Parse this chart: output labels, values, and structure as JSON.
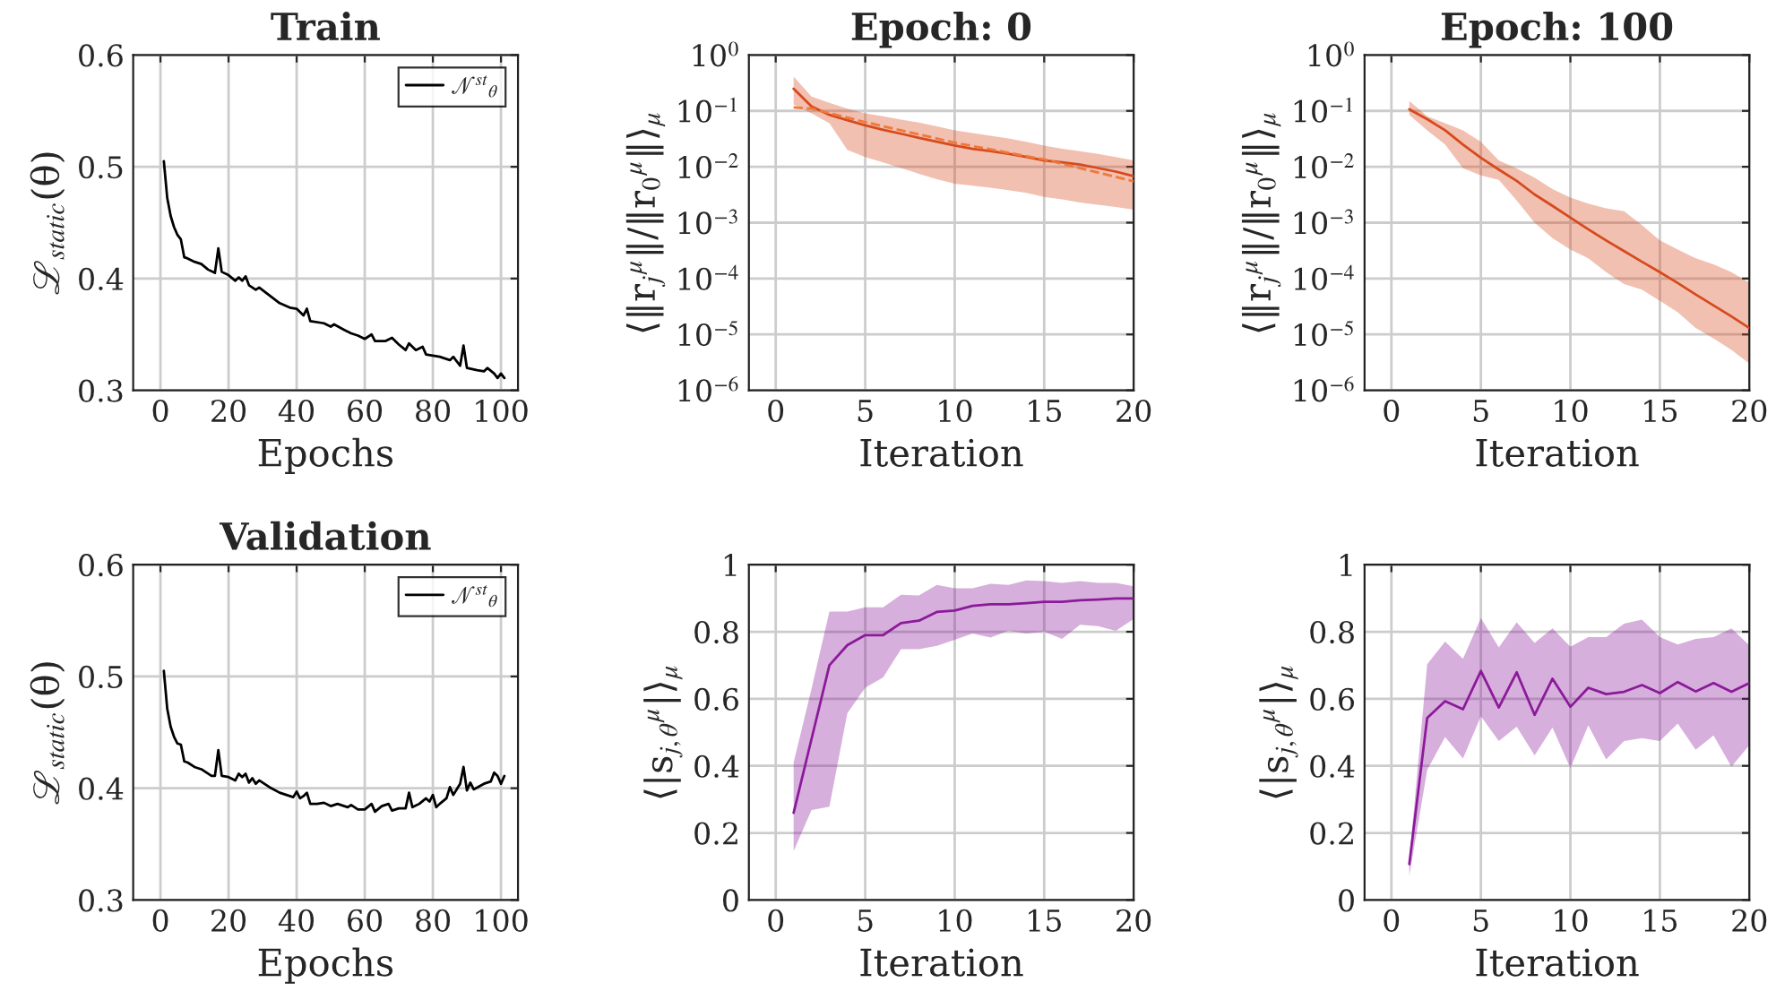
{
  "chart_data": [
    {
      "type": "line",
      "title": "Train",
      "xlabel": "Epochs",
      "ylabel": "ℒ$_{static}$(θ)",
      "xlim": [
        -8,
        105
      ],
      "xticks": [
        0,
        20,
        40,
        60,
        80,
        100
      ],
      "ylim": [
        0.3,
        0.6
      ],
      "yticks": [
        0.3,
        0.4,
        0.5,
        0.6
      ],
      "grid": true,
      "legend": "top right",
      "series": [
        {
          "name": "𝒩$^{st}$$_{θ}$",
          "color": "#000000",
          "x": [
            1,
            2,
            3,
            4,
            5,
            6,
            7,
            8,
            10,
            12,
            14,
            16,
            17,
            18,
            20,
            22,
            23,
            24,
            25,
            26,
            28,
            29,
            32,
            35,
            38,
            40,
            41,
            42,
            43,
            44,
            48,
            50,
            51,
            54,
            56,
            58,
            60,
            62,
            63,
            66,
            68,
            70,
            72,
            73,
            75,
            77,
            78,
            80,
            82,
            84,
            85,
            86,
            88,
            89,
            90,
            93,
            95,
            96,
            98,
            99,
            100,
            101
          ],
          "values": [
            0.505,
            0.472,
            0.456,
            0.446,
            0.439,
            0.435,
            0.419,
            0.418,
            0.415,
            0.413,
            0.408,
            0.405,
            0.427,
            0.406,
            0.403,
            0.398,
            0.401,
            0.398,
            0.402,
            0.394,
            0.39,
            0.392,
            0.385,
            0.378,
            0.374,
            0.373,
            0.37,
            0.367,
            0.373,
            0.362,
            0.36,
            0.357,
            0.359,
            0.354,
            0.351,
            0.349,
            0.346,
            0.35,
            0.344,
            0.344,
            0.347,
            0.341,
            0.336,
            0.342,
            0.336,
            0.339,
            0.332,
            0.331,
            0.33,
            0.328,
            0.327,
            0.33,
            0.322,
            0.34,
            0.32,
            0.318,
            0.317,
            0.32,
            0.315,
            0.311,
            0.315,
            0.311
          ]
        }
      ]
    },
    {
      "type": "line",
      "title": "Epoch: 0",
      "xlabel": "Iteration",
      "ylabel": "⟨‖r$_{j}$$^{μ}$‖/‖r$_{0}$$^{μ}$‖⟩$_{μ}$",
      "log": "y",
      "xlim": [
        -1.5,
        20
      ],
      "xticks": [
        0,
        5,
        10,
        15,
        20
      ],
      "ylim": [
        1e-06,
        1
      ],
      "yticks": [
        {
          "value": 1e-06,
          "label": "10$^{−6}$"
        },
        {
          "value": 1e-05,
          "label": "10$^{−5}$"
        },
        {
          "value": 0.0001,
          "label": "10$^{−4}$"
        },
        {
          "value": 0.001,
          "label": "10$^{−3}$"
        },
        {
          "value": 0.01,
          "label": "10$^{−2}$"
        },
        {
          "value": 0.1,
          "label": "10$^{−1}$"
        },
        {
          "value": 1,
          "label": "10$^{0}$"
        }
      ],
      "grid": true,
      "x": [
        1,
        2,
        3,
        4,
        5,
        6,
        7,
        8,
        9,
        10,
        11,
        12,
        13,
        14,
        15,
        16,
        17,
        18,
        19,
        20
      ],
      "series": [
        {
          "color": "#d64a1e",
          "values": [
            0.25,
            0.12,
            0.085,
            0.068,
            0.055,
            0.046,
            0.039,
            0.033,
            0.028,
            0.024,
            0.021,
            0.019,
            0.017,
            0.015,
            0.013,
            0.012,
            0.011,
            0.0095,
            0.0082,
            0.0068
          ],
          "lower": [
            0.13,
            0.09,
            0.06,
            0.02,
            0.015,
            0.012,
            0.0095,
            0.0075,
            0.006,
            0.005,
            0.0046,
            0.0042,
            0.0038,
            0.0034,
            0.0029,
            0.0026,
            0.0023,
            0.0021,
            0.0019,
            0.0017
          ],
          "upper": [
            0.41,
            0.18,
            0.14,
            0.11,
            0.09,
            0.08,
            0.07,
            0.062,
            0.053,
            0.045,
            0.04,
            0.036,
            0.032,
            0.028,
            0.024,
            0.021,
            0.019,
            0.017,
            0.015,
            0.013
          ]
        },
        {
          "color": "#f07838",
          "line_style": "dashed",
          "x": [
            1,
            2,
            5,
            10,
            15,
            20
          ],
          "values": [
            0.115,
            0.11,
            0.063,
            0.027,
            0.0135,
            0.0055
          ]
        }
      ]
    },
    {
      "type": "line",
      "title": "Epoch: 100",
      "xlabel": "Iteration",
      "ylabel": "⟨‖r$_{j}$$^{μ}$‖/‖r$_{0}$$^{μ}$‖⟩$_{μ}$",
      "log": "y",
      "xlim": [
        -1.5,
        20
      ],
      "xticks": [
        0,
        5,
        10,
        15,
        20
      ],
      "ylim": [
        1e-06,
        1
      ],
      "yticks": [
        {
          "value": 1e-06,
          "label": "10$^{−6}$"
        },
        {
          "value": 1e-05,
          "label": "10$^{−5}$"
        },
        {
          "value": 0.0001,
          "label": "10$^{−4}$"
        },
        {
          "value": 0.001,
          "label": "10$^{−3}$"
        },
        {
          "value": 0.01,
          "label": "10$^{−2}$"
        },
        {
          "value": 0.1,
          "label": "10$^{−1}$"
        },
        {
          "value": 1,
          "label": "10$^{0}$"
        }
      ],
      "grid": true,
      "x": [
        1,
        2,
        3,
        4,
        5,
        6,
        7,
        8,
        9,
        10,
        11,
        12,
        13,
        14,
        15,
        16,
        17,
        18,
        19,
        20
      ],
      "series": [
        {
          "color": "#d64a1e",
          "values": [
            0.107,
            0.071,
            0.045,
            0.025,
            0.0145,
            0.0089,
            0.0056,
            0.0032,
            0.002,
            0.00123,
            0.00076,
            0.00048,
            0.00031,
            0.0002,
            0.00013,
            8.3e-05,
            5.2e-05,
            3.3e-05,
            2.1e-05,
            1.3e-05
          ],
          "lower": [
            0.085,
            0.045,
            0.025,
            0.0094,
            0.007,
            0.0058,
            0.0025,
            0.001,
            0.00053,
            0.00033,
            0.00023,
            0.00013,
            8e-05,
            6.3e-05,
            4e-05,
            2.5e-05,
            1.3e-05,
            8.5e-06,
            5.3e-06,
            3e-06
          ],
          "upper": [
            0.15,
            0.08,
            0.06,
            0.045,
            0.028,
            0.013,
            0.0093,
            0.0064,
            0.004,
            0.0028,
            0.0022,
            0.0018,
            0.0016,
            0.0009,
            0.00048,
            0.00033,
            0.00023,
            0.00018,
            0.00013,
            8.4e-05
          ]
        }
      ]
    },
    {
      "type": "line",
      "title": "Validation",
      "xlabel": "Epochs",
      "ylabel": "ℒ$_{static}$(θ)",
      "xlim": [
        -8,
        105
      ],
      "xticks": [
        0,
        20,
        40,
        60,
        80,
        100
      ],
      "ylim": [
        0.3,
        0.6
      ],
      "yticks": [
        0.3,
        0.4,
        0.5,
        0.6
      ],
      "grid": true,
      "legend": "top right",
      "series": [
        {
          "name": "𝒩$^{st}$$_{θ}$",
          "color": "#000000",
          "x": [
            1,
            2,
            3,
            4,
            5,
            6,
            7,
            8,
            10,
            12,
            15,
            16,
            17,
            18,
            20,
            22,
            23,
            24,
            25,
            26,
            27,
            28,
            29,
            32,
            35,
            38,
            39,
            40,
            41,
            42,
            43,
            44,
            46,
            48,
            50,
            52,
            55,
            56,
            58,
            60,
            62,
            63,
            65,
            67,
            68,
            70,
            72,
            73,
            74,
            76,
            78,
            79,
            80,
            81,
            82,
            84,
            85,
            86,
            88,
            89,
            90,
            91,
            92,
            95,
            97,
            98,
            99,
            100,
            101
          ],
          "values": [
            0.505,
            0.471,
            0.455,
            0.446,
            0.44,
            0.439,
            0.424,
            0.423,
            0.419,
            0.417,
            0.411,
            0.411,
            0.434,
            0.411,
            0.41,
            0.407,
            0.413,
            0.41,
            0.413,
            0.405,
            0.409,
            0.404,
            0.407,
            0.401,
            0.396,
            0.393,
            0.392,
            0.397,
            0.391,
            0.393,
            0.396,
            0.386,
            0.386,
            0.387,
            0.384,
            0.386,
            0.383,
            0.385,
            0.381,
            0.381,
            0.386,
            0.379,
            0.384,
            0.386,
            0.38,
            0.382,
            0.382,
            0.396,
            0.383,
            0.386,
            0.391,
            0.388,
            0.394,
            0.383,
            0.386,
            0.391,
            0.401,
            0.394,
            0.404,
            0.419,
            0.398,
            0.405,
            0.399,
            0.404,
            0.406,
            0.414,
            0.411,
            0.404,
            0.411
          ]
        }
      ]
    },
    {
      "type": "line",
      "xlabel": "Iteration",
      "ylabel": "⟨|s$_{j,θ}$$^{μ}$|⟩$_{μ}$",
      "xlim": [
        -1.5,
        20
      ],
      "xticks": [
        0,
        5,
        10,
        15,
        20
      ],
      "ylim": [
        0,
        1
      ],
      "yticks": [
        0,
        0.2,
        0.4,
        0.6,
        0.8,
        1
      ],
      "grid": true,
      "x": [
        1,
        2,
        3,
        4,
        5,
        6,
        7,
        8,
        9,
        10,
        11,
        12,
        13,
        14,
        15,
        16,
        17,
        18,
        19,
        20
      ],
      "series": [
        {
          "color": "#8b1a9a",
          "values": [
            0.26,
            0.48,
            0.7,
            0.76,
            0.79,
            0.79,
            0.826,
            0.833,
            0.859,
            0.863,
            0.877,
            0.882,
            0.882,
            0.885,
            0.889,
            0.889,
            0.894,
            0.896,
            0.899,
            0.899
          ],
          "lower": [
            0.146,
            0.268,
            0.278,
            0.557,
            0.633,
            0.664,
            0.748,
            0.748,
            0.758,
            0.776,
            0.795,
            0.783,
            0.803,
            0.795,
            0.8,
            0.779,
            0.821,
            0.817,
            0.803,
            0.838
          ],
          "upper": [
            0.41,
            0.63,
            0.86,
            0.86,
            0.873,
            0.873,
            0.91,
            0.908,
            0.94,
            0.93,
            0.93,
            0.943,
            0.94,
            0.953,
            0.951,
            0.946,
            0.951,
            0.946,
            0.946,
            0.936
          ]
        }
      ]
    },
    {
      "type": "line",
      "xlabel": "Iteration",
      "ylabel": "⟨|s$_{j,θ}$$^{μ}$|⟩$_{μ}$",
      "xlim": [
        -1.5,
        20
      ],
      "xticks": [
        0,
        5,
        10,
        15,
        20
      ],
      "ylim": [
        0,
        1
      ],
      "yticks": [
        0,
        0.2,
        0.4,
        0.6,
        0.8,
        1
      ],
      "grid": true,
      "x": [
        1,
        2,
        3,
        4,
        5,
        6,
        7,
        8,
        9,
        10,
        11,
        12,
        13,
        14,
        15,
        16,
        17,
        18,
        19,
        20
      ],
      "series": [
        {
          "color": "#8b1a9a",
          "values": [
            0.107,
            0.543,
            0.593,
            0.569,
            0.683,
            0.574,
            0.679,
            0.552,
            0.66,
            0.576,
            0.633,
            0.614,
            0.621,
            0.641,
            0.617,
            0.65,
            0.622,
            0.647,
            0.621,
            0.647
          ],
          "lower": [
            0.072,
            0.388,
            0.486,
            0.422,
            0.548,
            0.474,
            0.517,
            0.431,
            0.514,
            0.393,
            0.521,
            0.419,
            0.474,
            0.483,
            0.474,
            0.526,
            0.448,
            0.491,
            0.397,
            0.462
          ],
          "upper": [
            0.12,
            0.703,
            0.771,
            0.719,
            0.841,
            0.753,
            0.828,
            0.767,
            0.81,
            0.755,
            0.784,
            0.784,
            0.824,
            0.836,
            0.784,
            0.762,
            0.779,
            0.784,
            0.81,
            0.759
          ]
        }
      ]
    }
  ]
}
